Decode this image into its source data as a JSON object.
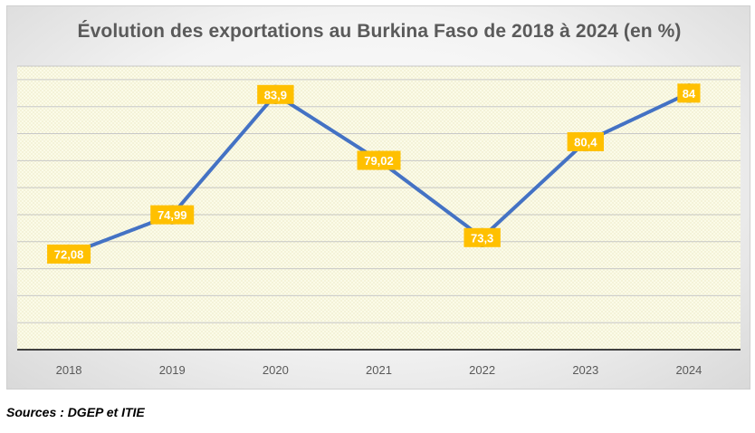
{
  "chart_data": {
    "type": "line",
    "title": "Évolution des exportations au Burkina Faso de 2018 à 2024 (en %)",
    "categories": [
      "2018",
      "2019",
      "2020",
      "2021",
      "2022",
      "2023",
      "2024"
    ],
    "series": [
      {
        "values": [
          72.08,
          74.99,
          83.9,
          79.02,
          73.3,
          80.4,
          84
        ],
        "labels": [
          "72,08",
          "74,99",
          "83,9",
          "79,02",
          "73,3",
          "80,4",
          "84"
        ],
        "color": "#4472c4"
      }
    ],
    "ylim": [
      65,
      86
    ],
    "grid": true,
    "y_tick_labels_visible": false,
    "data_label_color": "#ffc000",
    "plot_background": "#fbfbe8"
  },
  "footer": {
    "sources": "Sources : DGEP et ITIE"
  }
}
